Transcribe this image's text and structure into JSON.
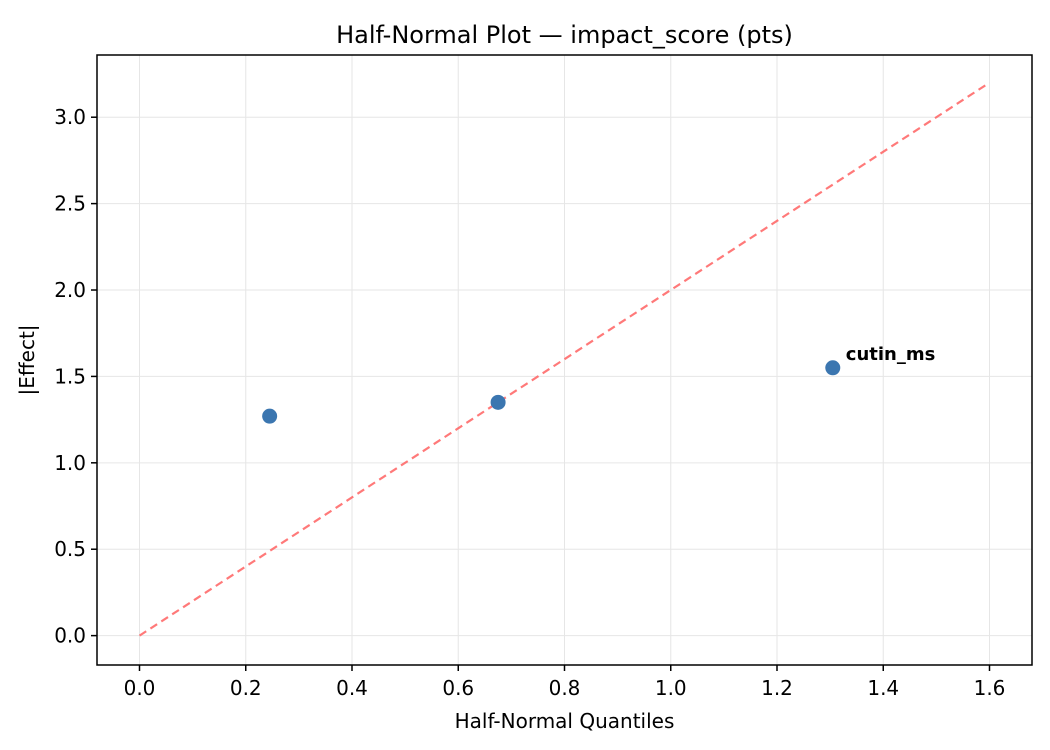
{
  "chart_data": {
    "type": "scatter",
    "title": "Half-Normal Plot — impact_score (pts)",
    "xlabel": "Half-Normal Quantiles",
    "ylabel": "|Effect|",
    "xlim": [
      -0.08,
      1.68
    ],
    "ylim": [
      -0.17,
      3.36
    ],
    "x_ticks": [
      0.0,
      0.2,
      0.4,
      0.6,
      0.8,
      1.0,
      1.2,
      1.4,
      1.6
    ],
    "y_ticks": [
      0.0,
      0.5,
      1.0,
      1.5,
      2.0,
      2.5,
      3.0
    ],
    "grid": true,
    "legend": "none",
    "points": [
      {
        "x": 0.245,
        "y": 1.27,
        "label": ""
      },
      {
        "x": 0.675,
        "y": 1.35,
        "label": ""
      },
      {
        "x": 1.305,
        "y": 1.55,
        "label": "cutin_ms"
      }
    ],
    "reference_line": {
      "x1": 0.0,
      "y1": 0.0,
      "x2": 1.6,
      "y2": 3.2,
      "style": "dashed",
      "color": "#ff6262"
    },
    "colors": {
      "point": "#3b76b0",
      "annotation": "#e10000",
      "grid": "#e6e6e6",
      "spine": "#000000"
    }
  }
}
